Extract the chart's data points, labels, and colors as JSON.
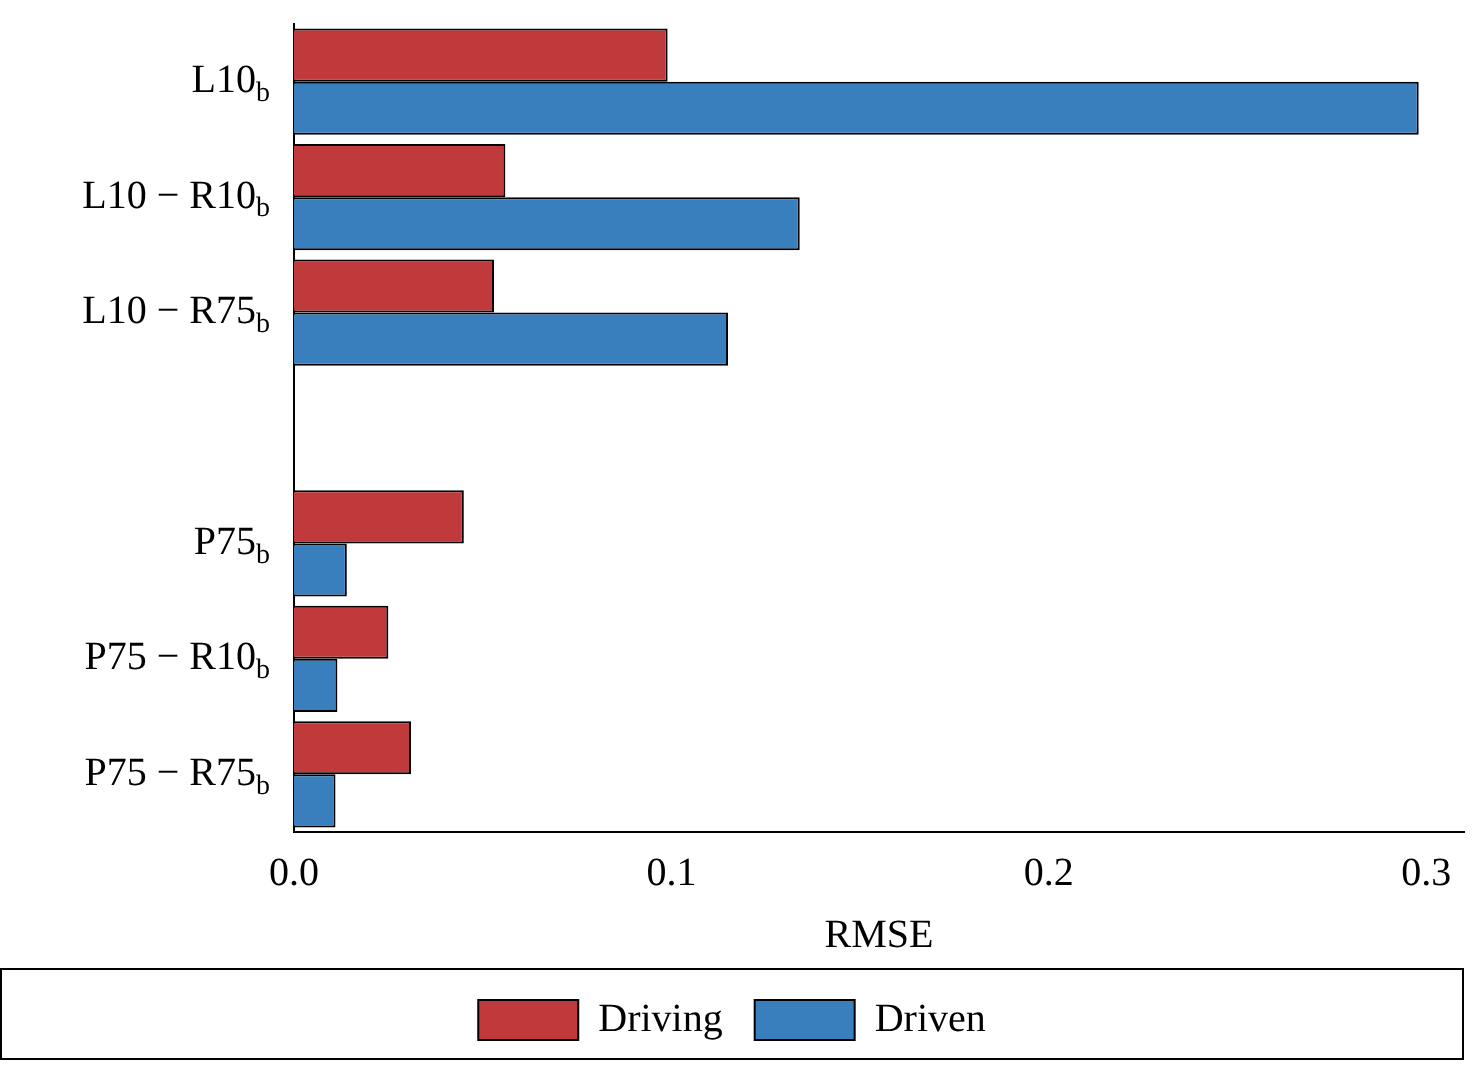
{
  "chart_data": {
    "type": "bar",
    "orientation": "horizontal",
    "xlabel": "RMSE",
    "categories": [
      "L10$_{b}$",
      "L10 − R10$_{b}$",
      "L10 − R75$_{b}$",
      null,
      "P75$_{b}$",
      "P75 − R10$_{b}$",
      "P75 − R75$_{b}$"
    ],
    "series": [
      {
        "name": "Driving",
        "color": "#c0393b",
        "values": [
          0.099,
          0.056,
          0.053,
          null,
          0.045,
          0.025,
          0.031
        ]
      },
      {
        "name": "Driven",
        "color": "#3a7fbd",
        "values": [
          0.298,
          0.134,
          0.115,
          null,
          0.014,
          0.0115,
          0.011
        ]
      }
    ],
    "xlim": [
      0,
      0.31
    ],
    "xticks": [
      {
        "value": 0,
        "label": "0.0"
      },
      {
        "value": 0.1,
        "label": "0.1"
      },
      {
        "value": 0.2,
        "label": "0.2"
      },
      {
        "value": 0.3,
        "label": "0.3"
      }
    ],
    "grid": false,
    "legend": "bottom"
  }
}
